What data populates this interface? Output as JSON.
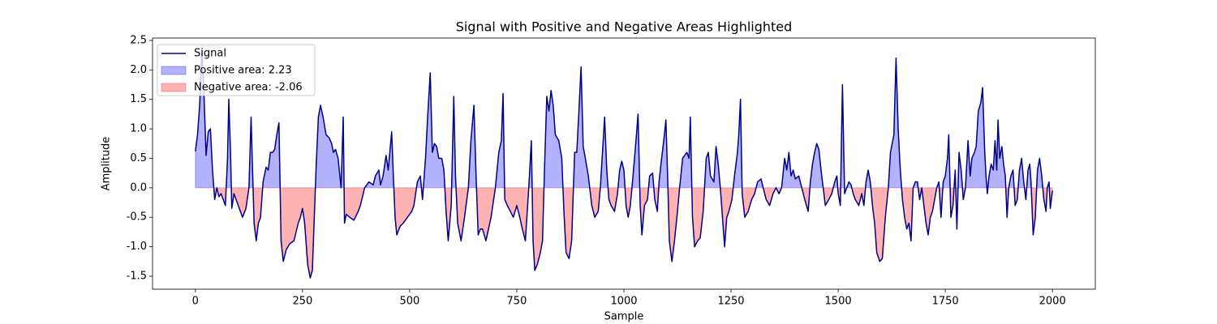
{
  "chart_data": {
    "type": "line",
    "title": "Signal with Positive and Negative Areas Highlighted",
    "xlabel": "Sample",
    "ylabel": "Amplitude",
    "x": [
      0,
      5,
      10,
      15,
      20,
      25,
      30,
      35,
      40,
      45,
      50,
      55,
      60,
      70,
      75,
      78,
      82,
      85,
      90,
      100,
      110,
      118,
      125,
      130,
      133,
      137,
      142,
      147,
      152,
      158,
      165,
      170,
      175,
      180,
      185,
      190,
      195,
      200,
      205,
      212,
      220,
      230,
      240,
      245,
      250,
      255,
      262,
      268,
      273,
      278,
      282,
      287,
      292,
      298,
      305,
      312,
      318,
      322,
      327,
      333,
      340,
      345,
      348,
      352,
      360,
      370,
      380,
      385,
      395,
      405,
      415,
      420,
      428,
      432,
      438,
      445,
      450,
      458,
      462,
      466,
      470,
      478,
      485,
      495,
      505,
      510,
      518,
      525,
      530,
      537,
      542,
      548,
      553,
      558,
      563,
      568,
      575,
      580,
      585,
      590,
      597,
      603,
      607,
      612,
      620,
      628,
      637,
      643,
      650,
      655,
      660,
      665,
      670,
      678,
      690,
      700,
      708,
      714,
      718,
      722,
      728,
      735,
      742,
      750,
      757,
      763,
      770,
      778,
      784,
      788,
      792,
      798,
      805,
      810,
      815,
      820,
      825,
      830,
      835,
      840,
      848,
      855,
      860,
      865,
      872,
      878,
      885,
      890,
      895,
      900,
      905,
      910,
      917,
      925,
      932,
      940,
      945,
      950,
      955,
      960,
      965,
      970,
      978,
      985,
      990,
      995,
      1000,
      1005,
      1010,
      1015,
      1020,
      1027,
      1033,
      1038,
      1042,
      1048,
      1055,
      1060,
      1067,
      1072,
      1078,
      1082,
      1088,
      1093,
      1098,
      1102,
      1106,
      1112,
      1118,
      1125,
      1130,
      1137,
      1142,
      1147,
      1152,
      1155,
      1160,
      1165,
      1172,
      1178,
      1185,
      1192,
      1197,
      1202,
      1210,
      1215,
      1220,
      1225,
      1230,
      1235,
      1240,
      1245,
      1252,
      1258,
      1265,
      1268,
      1272,
      1276,
      1282,
      1290,
      1298,
      1305,
      1312,
      1320,
      1325,
      1332,
      1340,
      1348,
      1355,
      1362,
      1368,
      1375,
      1380,
      1385,
      1390,
      1395,
      1400,
      1408,
      1415,
      1422,
      1430,
      1435,
      1440,
      1445,
      1450,
      1455,
      1460,
      1465,
      1470,
      1478,
      1485,
      1492,
      1497,
      1500,
      1505,
      1510,
      1515,
      1520,
      1525,
      1530,
      1535,
      1540,
      1548,
      1555,
      1560,
      1565,
      1570,
      1575,
      1580,
      1585,
      1590,
      1597,
      1603,
      1610,
      1617,
      1622,
      1630,
      1635,
      1640,
      1645,
      1650,
      1655,
      1660,
      1665,
      1670,
      1675,
      1680,
      1685,
      1690,
      1695,
      1700,
      1705,
      1710,
      1715,
      1720,
      1725,
      1730,
      1735,
      1740,
      1745,
      1750,
      1755,
      1758,
      1763,
      1768,
      1773,
      1777,
      1782,
      1787,
      1792,
      1797,
      1803,
      1808,
      1812,
      1818,
      1822,
      1827,
      1833,
      1837,
      1842,
      1845,
      1848,
      1852,
      1857,
      1862,
      1866,
      1870,
      1873,
      1877,
      1882,
      1886,
      1890,
      1894,
      1898,
      1903,
      1908,
      1913,
      1918,
      1923,
      1928,
      1933,
      1938,
      1943,
      1947,
      1950,
      1955,
      1960,
      1965,
      1970,
      1975,
      1980,
      1985,
      1988,
      1992,
      1995,
      2000
    ],
    "series": [
      {
        "name": "Signal",
        "color": "#00008b",
        "values": [
          0.62,
          0.9,
          1.4,
          2.33,
          1.6,
          0.55,
          0.95,
          1.0,
          0.3,
          -0.2,
          0.0,
          -0.15,
          -0.1,
          -0.3,
          0.5,
          1.5,
          0.6,
          -0.35,
          -0.1,
          -0.3,
          -0.5,
          -0.35,
          0.0,
          1.2,
          0.4,
          -0.6,
          -0.9,
          -0.6,
          -0.5,
          0.1,
          0.35,
          0.3,
          0.6,
          0.6,
          0.65,
          0.9,
          1.1,
          -0.9,
          -1.25,
          -1.05,
          -0.95,
          -0.9,
          -0.6,
          -0.5,
          -0.35,
          -0.6,
          -1.3,
          -1.53,
          -1.4,
          -0.4,
          0.4,
          1.2,
          1.4,
          1.2,
          0.9,
          0.85,
          0.75,
          0.6,
          0.65,
          0.5,
          0.0,
          1.2,
          -0.6,
          -0.45,
          -0.5,
          -0.55,
          -0.4,
          -0.3,
          0.0,
          0.1,
          0.05,
          0.2,
          0.3,
          0.05,
          0.2,
          0.55,
          0.3,
          0.95,
          0.2,
          -0.5,
          -0.8,
          -0.65,
          -0.6,
          -0.5,
          -0.4,
          -0.3,
          0.1,
          0.2,
          -0.2,
          0.5,
          1.2,
          1.95,
          0.6,
          0.75,
          0.7,
          0.5,
          0.5,
          0.3,
          -0.4,
          -0.9,
          -0.3,
          1.55,
          0.2,
          -0.6,
          -0.9,
          -0.5,
          0.0,
          0.8,
          1.4,
          0.2,
          -0.8,
          -0.7,
          -0.7,
          -0.9,
          -0.5,
          0.0,
          0.6,
          0.8,
          1.6,
          -0.2,
          -0.3,
          -0.4,
          -0.5,
          -0.3,
          -0.5,
          -0.7,
          -0.9,
          0.0,
          0.8,
          -0.9,
          -1.4,
          -1.3,
          -1.1,
          -0.9,
          0.4,
          1.55,
          1.3,
          1.65,
          1.4,
          0.9,
          0.8,
          0.5,
          -0.4,
          -1.1,
          -1.2,
          -0.9,
          0.6,
          0.6,
          1.3,
          2.05,
          0.7,
          0.5,
          0.2,
          -0.3,
          -0.5,
          -0.4,
          0.0,
          0.6,
          1.2,
          0.3,
          -0.2,
          -0.3,
          -0.4,
          -0.1,
          0.3,
          0.45,
          0.3,
          -0.3,
          -0.5,
          -0.3,
          0.1,
          0.7,
          1.25,
          -0.3,
          -0.8,
          -0.3,
          -0.2,
          0.2,
          0.25,
          -0.2,
          -0.4,
          0.1,
          0.5,
          0.8,
          1.15,
          0.2,
          -0.9,
          -1.25,
          -0.9,
          -0.4,
          0.0,
          0.5,
          0.55,
          0.6,
          0.5,
          1.2,
          -0.5,
          -1.0,
          -0.9,
          -0.85,
          -0.4,
          0.5,
          0.6,
          0.2,
          0.1,
          0.7,
          0.4,
          0.0,
          -0.5,
          -1.0,
          -0.5,
          -0.4,
          -0.2,
          0.2,
          0.6,
          0.9,
          1.5,
          -0.1,
          -0.5,
          -0.4,
          -0.2,
          -0.1,
          0.1,
          0.15,
          0.0,
          -0.2,
          -0.3,
          -0.1,
          0.0,
          -0.1,
          0.0,
          0.5,
          0.3,
          0.6,
          0.2,
          0.3,
          0.15,
          0.2,
          0.0,
          -0.2,
          -0.4,
          0.1,
          0.4,
          0.6,
          0.75,
          0.65,
          0.3,
          0.0,
          -0.3,
          -0.2,
          -0.1,
          0.1,
          0.2,
          -0.1,
          -0.3,
          1.75,
          -0.1,
          0.0,
          0.1,
          0.05,
          -0.1,
          -0.2,
          -0.3,
          -0.1,
          -0.3,
          0.1,
          0.3,
          0.1,
          -0.3,
          -0.6,
          -1.1,
          -1.25,
          -1.2,
          -0.5,
          0.0,
          0.6,
          0.9,
          2.2,
          1.0,
          0.3,
          -0.2,
          -0.5,
          -0.7,
          -0.6,
          -0.9,
          0.0,
          0.1,
          0.1,
          -0.2,
          0.0,
          -0.3,
          -0.6,
          -0.8,
          -0.5,
          -0.4,
          -0.2,
          0.0,
          0.1,
          -0.5,
          0.1,
          0.2,
          0.5,
          0.9,
          -0.5,
          -0.3,
          0.3,
          -0.7,
          0.6,
          0.3,
          -0.2,
          0.0,
          0.8,
          0.2,
          0.5,
          0.6,
          0.7,
          1.3,
          1.45,
          1.7,
          0.6,
          0.2,
          -0.1,
          0.2,
          0.4,
          0.3,
          0.8,
          0.3,
          1.15,
          0.5,
          0.7,
          0.4,
          0.2,
          -0.5,
          0.0,
          0.2,
          0.3,
          -0.3,
          -0.2,
          0.3,
          0.5,
          0.1,
          -0.2,
          0.3,
          0.4,
          0.1,
          -0.8,
          -0.5,
          0.3,
          0.5,
          0.2,
          -0.2,
          -0.4,
          0.0,
          0.1,
          -0.35,
          -0.05
        ]
      }
    ],
    "fills": [
      {
        "name": "Positive area: 2.23",
        "color": "#0000ff",
        "alpha": 0.3,
        "side": "above"
      },
      {
        "name": "Negative area: -2.06",
        "color": "#ff0000",
        "alpha": 0.3,
        "side": "below"
      }
    ],
    "xlim": [
      -100,
      2100
    ],
    "xticks": [
      0,
      250,
      500,
      750,
      1000,
      1250,
      1500,
      1750,
      2000
    ],
    "ylim": [
      -1.72,
      2.54
    ],
    "yticks": [
      -1.5,
      {
        "value": -1,
        "label": "-1.0"
      },
      -0.5,
      {
        "value": 0,
        "label": "0.0"
      },
      0.5,
      {
        "value": 1,
        "label": "1.0"
      },
      1.5,
      {
        "value": 2,
        "label": "2.0"
      },
      2.5
    ],
    "legend": "upper left"
  }
}
